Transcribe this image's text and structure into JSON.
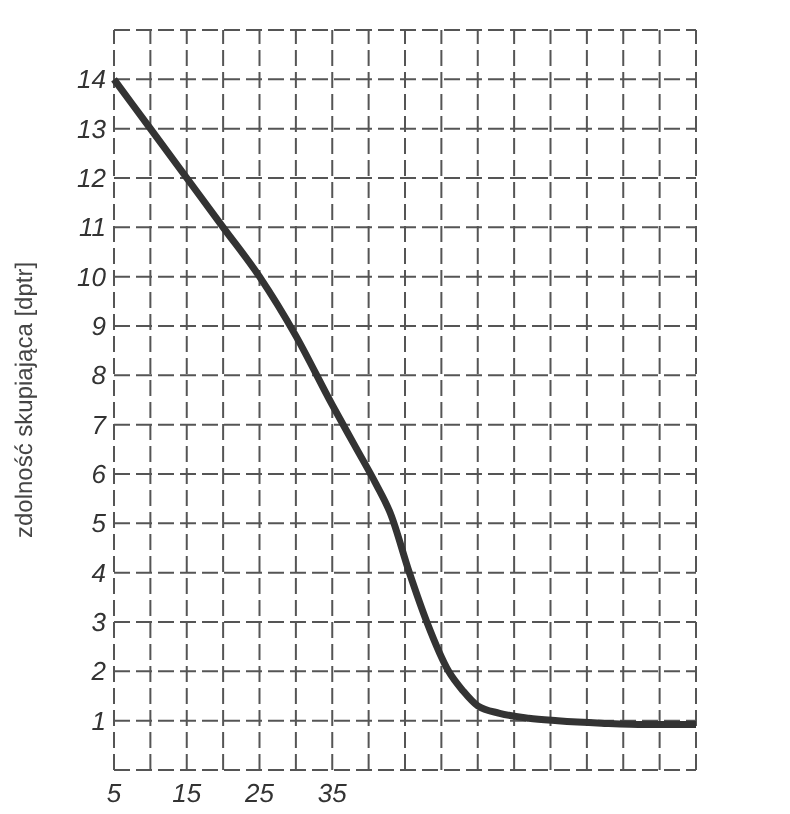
{
  "chart_data": {
    "type": "line",
    "ylabel": "zdolność skupiająca [dptr]",
    "x": [
      5,
      10,
      15,
      20,
      25,
      30,
      35,
      38,
      41,
      43,
      45.6,
      48,
      51,
      53,
      55,
      58,
      62,
      66,
      72,
      78,
      85
    ],
    "series": [
      {
        "color": "#333333",
        "values": [
          14,
          13,
          12,
          11,
          10,
          8.8,
          7.4,
          6.6,
          5.8,
          5.2,
          4,
          3,
          2,
          1.6,
          1.3,
          1.15,
          1.05,
          1,
          0.95,
          0.92,
          0.92
        ]
      }
    ],
    "xlim": [
      5,
      85
    ],
    "ylim": [
      0,
      15
    ],
    "xticks": [
      5,
      {
        "value": 10,
        "label": null
      },
      15,
      {
        "value": 20,
        "label": null
      },
      25,
      {
        "value": 30,
        "label": null
      },
      35,
      {
        "value": 40,
        "label": null
      },
      {
        "value": 45,
        "label": null
      },
      {
        "value": 50,
        "label": null
      },
      {
        "value": 55,
        "label": null
      },
      {
        "value": 60,
        "label": null
      },
      {
        "value": 65,
        "label": null
      },
      {
        "value": 70,
        "label": null
      },
      {
        "value": 75,
        "label": null
      },
      {
        "value": 80,
        "label": null
      },
      {
        "value": 85,
        "label": null
      }
    ],
    "yticks": [
      {
        "value": 0,
        "label": null
      },
      1,
      2,
      3,
      4,
      5,
      6,
      7,
      8,
      9,
      10,
      11,
      12,
      13,
      14,
      {
        "value": 15,
        "label": null
      }
    ],
    "grid": true,
    "marker": "none",
    "line_style": "solid"
  }
}
